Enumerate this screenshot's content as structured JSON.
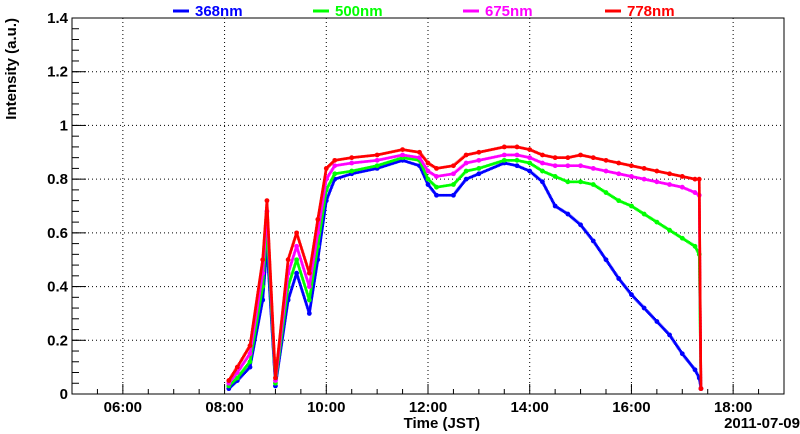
{
  "chart_data": {
    "type": "scatter",
    "title": "",
    "xlabel": "Time (JST)",
    "ylabel": "Intensity (a.u.)",
    "date_label": "2011-07-09",
    "xlim": [
      "05:00",
      "19:00"
    ],
    "ylim": [
      0,
      1.4
    ],
    "x_ticks": [
      "06:00",
      "08:00",
      "10:00",
      "12:00",
      "14:00",
      "16:00",
      "18:00"
    ],
    "y_ticks": [
      "0",
      "0.2",
      "0.4",
      "0.6",
      "0.8",
      "1",
      "1.2",
      "1.4"
    ],
    "grid": true,
    "legend_position": "top",
    "series": [
      {
        "name": "368nm",
        "color": "#0000ff",
        "x": [
          "08:05",
          "08:15",
          "08:30",
          "08:45",
          "08:50",
          "09:00",
          "09:15",
          "09:25",
          "09:40",
          "09:50",
          "10:00",
          "10:10",
          "10:30",
          "11:00",
          "11:30",
          "11:50",
          "12:00",
          "12:10",
          "12:30",
          "12:45",
          "13:00",
          "13:30",
          "13:45",
          "14:00",
          "14:15",
          "14:30",
          "14:45",
          "15:00",
          "15:15",
          "15:30",
          "15:45",
          "16:00",
          "16:15",
          "16:30",
          "16:45",
          "17:00",
          "17:15",
          "17:20",
          "17:22"
        ],
        "values": [
          0.02,
          0.05,
          0.1,
          0.35,
          0.55,
          0.03,
          0.35,
          0.45,
          0.3,
          0.5,
          0.72,
          0.8,
          0.82,
          0.84,
          0.87,
          0.85,
          0.78,
          0.74,
          0.74,
          0.8,
          0.82,
          0.86,
          0.85,
          0.83,
          0.79,
          0.7,
          0.67,
          0.63,
          0.57,
          0.5,
          0.43,
          0.37,
          0.32,
          0.27,
          0.22,
          0.15,
          0.09,
          0.06,
          0.02
        ]
      },
      {
        "name": "500nm",
        "color": "#00ff00",
        "x": [
          "08:05",
          "08:15",
          "08:30",
          "08:45",
          "08:50",
          "09:00",
          "09:15",
          "09:25",
          "09:40",
          "09:50",
          "10:00",
          "10:10",
          "10:30",
          "11:00",
          "11:30",
          "11:50",
          "12:00",
          "12:10",
          "12:30",
          "12:45",
          "13:00",
          "13:30",
          "13:45",
          "14:00",
          "14:15",
          "14:30",
          "14:45",
          "15:00",
          "15:15",
          "15:30",
          "15:45",
          "16:00",
          "16:15",
          "16:30",
          "16:45",
          "17:00",
          "17:15",
          "17:20",
          "17:22"
        ],
        "values": [
          0.03,
          0.06,
          0.12,
          0.4,
          0.62,
          0.04,
          0.4,
          0.5,
          0.35,
          0.55,
          0.76,
          0.82,
          0.83,
          0.85,
          0.88,
          0.87,
          0.8,
          0.77,
          0.78,
          0.83,
          0.84,
          0.87,
          0.87,
          0.86,
          0.83,
          0.81,
          0.79,
          0.79,
          0.78,
          0.75,
          0.72,
          0.7,
          0.67,
          0.64,
          0.61,
          0.58,
          0.55,
          0.52,
          0.02
        ]
      },
      {
        "name": "675nm",
        "color": "#ff00ff",
        "x": [
          "08:05",
          "08:15",
          "08:30",
          "08:45",
          "08:50",
          "09:00",
          "09:15",
          "09:25",
          "09:40",
          "09:50",
          "10:00",
          "10:10",
          "10:30",
          "11:00",
          "11:30",
          "11:50",
          "12:00",
          "12:10",
          "12:30",
          "12:45",
          "13:00",
          "13:30",
          "13:45",
          "14:00",
          "14:15",
          "14:30",
          "14:45",
          "15:00",
          "15:15",
          "15:30",
          "15:45",
          "16:00",
          "16:15",
          "16:30",
          "16:45",
          "17:00",
          "17:15",
          "17:20",
          "17:22"
        ],
        "values": [
          0.04,
          0.08,
          0.15,
          0.45,
          0.68,
          0.05,
          0.45,
          0.55,
          0.4,
          0.6,
          0.8,
          0.85,
          0.86,
          0.87,
          0.89,
          0.88,
          0.83,
          0.81,
          0.82,
          0.86,
          0.87,
          0.89,
          0.89,
          0.88,
          0.86,
          0.85,
          0.85,
          0.85,
          0.84,
          0.83,
          0.82,
          0.81,
          0.8,
          0.79,
          0.78,
          0.77,
          0.75,
          0.74,
          0.02
        ]
      },
      {
        "name": "778nm",
        "color": "#ff0000",
        "x": [
          "08:05",
          "08:15",
          "08:30",
          "08:45",
          "08:50",
          "09:00",
          "09:15",
          "09:25",
          "09:40",
          "09:50",
          "10:00",
          "10:10",
          "10:30",
          "11:00",
          "11:30",
          "11:50",
          "12:00",
          "12:10",
          "12:30",
          "12:45",
          "13:00",
          "13:30",
          "13:45",
          "14:00",
          "14:15",
          "14:30",
          "14:45",
          "15:00",
          "15:15",
          "15:30",
          "15:45",
          "16:00",
          "16:15",
          "16:30",
          "16:45",
          "17:00",
          "17:15",
          "17:20",
          "17:22"
        ],
        "values": [
          0.05,
          0.1,
          0.18,
          0.5,
          0.72,
          0.06,
          0.5,
          0.6,
          0.45,
          0.65,
          0.84,
          0.87,
          0.88,
          0.89,
          0.91,
          0.9,
          0.86,
          0.84,
          0.85,
          0.89,
          0.9,
          0.92,
          0.92,
          0.91,
          0.89,
          0.88,
          0.88,
          0.89,
          0.88,
          0.87,
          0.86,
          0.85,
          0.84,
          0.83,
          0.82,
          0.81,
          0.8,
          0.8,
          0.02
        ]
      }
    ]
  }
}
